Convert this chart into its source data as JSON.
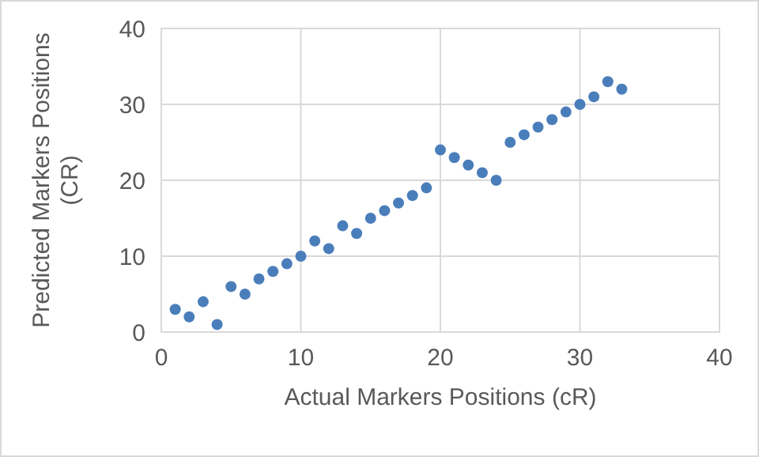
{
  "chart_data": {
    "type": "scatter",
    "xlabel": "Actual Markers Positions (cR)",
    "ylabel": "Predicted Markers Positions (CR)",
    "x": [
      1,
      2,
      3,
      4,
      5,
      6,
      7,
      8,
      9,
      10,
      11,
      12,
      13,
      14,
      15,
      16,
      17,
      18,
      19,
      20,
      21,
      22,
      23,
      24,
      25,
      26,
      27,
      28,
      29,
      30,
      31,
      32,
      33
    ],
    "series": [
      {
        "color": "#4a7ebb",
        "values": [
          3,
          2,
          4,
          1,
          6,
          5,
          7,
          8,
          9,
          10,
          12,
          11,
          14,
          13,
          15,
          16,
          17,
          18,
          19,
          24,
          23,
          22,
          21,
          20,
          25,
          26,
          27,
          28,
          29,
          30,
          31,
          33,
          32
        ]
      }
    ],
    "xlim": [
      0,
      40
    ],
    "xticks": [
      0,
      10,
      20,
      30,
      40
    ],
    "ylim": [
      0,
      40
    ],
    "yticks": [
      0,
      10,
      20,
      30,
      40
    ],
    "grid": true,
    "marker": "circle"
  }
}
